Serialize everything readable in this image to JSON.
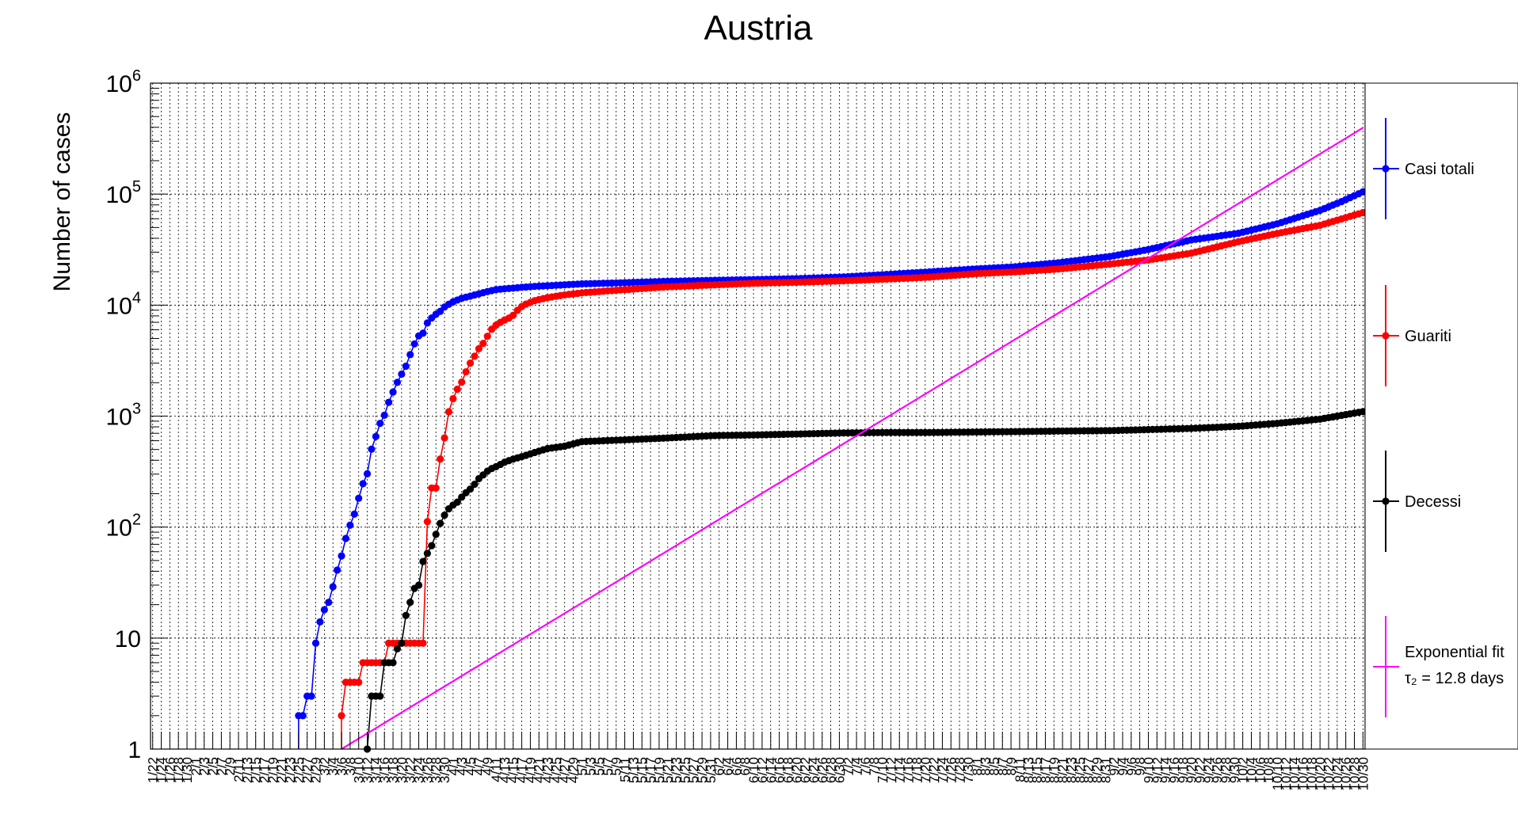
{
  "chart_data": {
    "type": "line",
    "title": "Austria",
    "ylabel": "Number of cases",
    "xlabel": "",
    "yscale": "log",
    "ylim": [
      1,
      1000000
    ],
    "y_tick_labels": [
      {
        "value": 1,
        "label": "1"
      },
      {
        "value": 10,
        "label": "10"
      },
      {
        "value": 100,
        "label": "10",
        "exp": "2"
      },
      {
        "value": 1000,
        "label": "10",
        "exp": "3"
      },
      {
        "value": 10000,
        "label": "10",
        "exp": "4"
      },
      {
        "value": 100000,
        "label": "10",
        "exp": "5"
      },
      {
        "value": 1000000,
        "label": "10",
        "exp": "6"
      }
    ],
    "x_start": "1/22",
    "x_end": "10/30",
    "x_tick_labels": [
      "1/22",
      "1/24",
      "1/26",
      "1/28",
      "1/30",
      "2/1",
      "2/3",
      "2/5",
      "2/7",
      "2/9",
      "2/11",
      "2/13",
      "2/15",
      "2/17",
      "2/19",
      "2/21",
      "2/23",
      "2/25",
      "2/27",
      "2/29",
      "3/2",
      "3/4",
      "3/6",
      "3/8",
      "3/10",
      "3/12",
      "3/14",
      "3/16",
      "3/18",
      "3/20",
      "3/22",
      "3/24",
      "3/26",
      "3/28",
      "3/30",
      "4/1",
      "4/3",
      "4/5",
      "4/7",
      "4/9",
      "4/11",
      "4/13",
      "4/15",
      "4/17",
      "4/19",
      "4/21",
      "4/23",
      "4/25",
      "4/27",
      "4/29",
      "5/1",
      "5/3",
      "5/5",
      "5/7",
      "5/9",
      "5/11",
      "5/13",
      "5/15",
      "5/17",
      "5/19",
      "5/21",
      "5/23",
      "5/25",
      "5/27",
      "5/29",
      "5/31",
      "6/2",
      "6/4",
      "6/6",
      "6/8",
      "6/10",
      "6/12",
      "6/14",
      "6/16",
      "6/18",
      "6/20",
      "6/22",
      "6/24",
      "6/26",
      "6/28",
      "6/30",
      "7/2",
      "7/4",
      "7/6",
      "7/8",
      "7/10",
      "7/12",
      "7/14",
      "7/16",
      "7/18",
      "7/20",
      "7/22",
      "7/24",
      "7/26",
      "7/28",
      "7/30",
      "8/1",
      "8/3",
      "8/5",
      "8/7",
      "8/9",
      "8/11",
      "8/13",
      "8/15",
      "8/17",
      "8/19",
      "8/21",
      "8/23",
      "8/25",
      "8/27",
      "8/29",
      "8/31",
      "9/2",
      "9/4",
      "9/6",
      "9/8",
      "9/10",
      "9/12",
      "9/14",
      "9/16",
      "9/18",
      "9/20",
      "9/22",
      "9/24",
      "9/26",
      "9/28",
      "9/30",
      "10/2",
      "10/4",
      "10/6",
      "10/8",
      "10/10",
      "10/12",
      "10/14",
      "10/16",
      "10/18",
      "10/20",
      "10/22",
      "10/24",
      "10/26",
      "10/28",
      "10/30"
    ],
    "grid": true,
    "legend_position": "right",
    "series": [
      {
        "name": "Casi totali",
        "color": "#0000ff",
        "markers": true,
        "points": [
          [
            "2/25",
            2
          ],
          [
            "2/26",
            2
          ],
          [
            "2/27",
            3
          ],
          [
            "2/28",
            3
          ],
          [
            "2/29",
            9
          ],
          [
            "3/1",
            14
          ],
          [
            "3/2",
            18
          ],
          [
            "3/3",
            21
          ],
          [
            "3/4",
            29
          ],
          [
            "3/5",
            41
          ],
          [
            "3/6",
            55
          ],
          [
            "3/7",
            79
          ],
          [
            "3/8",
            104
          ],
          [
            "3/9",
            131
          ],
          [
            "3/10",
            182
          ],
          [
            "3/11",
            246
          ],
          [
            "3/12",
            302
          ],
          [
            "3/13",
            504
          ],
          [
            "3/14",
            655
          ],
          [
            "3/15",
            860
          ],
          [
            "3/16",
            1018
          ],
          [
            "3/17",
            1332
          ],
          [
            "3/18",
            1646
          ],
          [
            "3/19",
            2013
          ],
          [
            "3/20",
            2388
          ],
          [
            "3/21",
            2814
          ],
          [
            "3/22",
            3582
          ],
          [
            "3/23",
            4474
          ],
          [
            "3/24",
            5283
          ],
          [
            "3/25",
            5588
          ],
          [
            "3/26",
            6909
          ],
          [
            "3/27",
            7657
          ],
          [
            "3/28",
            8271
          ],
          [
            "3/29",
            8788
          ],
          [
            "3/30",
            9618
          ],
          [
            "3/31",
            10180
          ],
          [
            "4/1",
            10711
          ],
          [
            "4/3",
            11525
          ],
          [
            "4/5",
            12051
          ],
          [
            "4/7",
            12640
          ],
          [
            "4/9",
            13244
          ],
          [
            "4/11",
            13806
          ],
          [
            "4/13",
            14041
          ],
          [
            "4/15",
            14226
          ],
          [
            "4/17",
            14476
          ],
          [
            "4/20",
            14749
          ],
          [
            "4/25",
            15089
          ],
          [
            "5/1",
            15531
          ],
          [
            "5/10",
            15882
          ],
          [
            "5/20",
            16353
          ],
          [
            "6/1",
            16731
          ],
          [
            "6/10",
            16979
          ],
          [
            "6/20",
            17323
          ],
          [
            "7/1",
            17941
          ],
          [
            "7/10",
            18783
          ],
          [
            "7/20",
            19827
          ],
          [
            "8/1",
            21212
          ],
          [
            "8/10",
            22155
          ],
          [
            "8/20",
            24084
          ],
          [
            "9/1",
            27404
          ],
          [
            "9/10",
            31705
          ],
          [
            "9/20",
            38658
          ],
          [
            "10/1",
            44401
          ],
          [
            "10/10",
            54006
          ],
          [
            "10/20",
            71390
          ],
          [
            "10/25",
            85660
          ],
          [
            "10/30",
            104925
          ]
        ]
      },
      {
        "name": "Guariti",
        "color": "#ff0000",
        "markers": true,
        "points": [
          [
            "3/6",
            2
          ],
          [
            "3/7",
            4
          ],
          [
            "3/8",
            4
          ],
          [
            "3/9",
            4
          ],
          [
            "3/10",
            4
          ],
          [
            "3/11",
            6
          ],
          [
            "3/12",
            6
          ],
          [
            "3/13",
            6
          ],
          [
            "3/14",
            6
          ],
          [
            "3/15",
            6
          ],
          [
            "3/16",
            6
          ],
          [
            "3/17",
            9
          ],
          [
            "3/18",
            9
          ],
          [
            "3/19",
            9
          ],
          [
            "3/20",
            9
          ],
          [
            "3/21",
            9
          ],
          [
            "3/22",
            9
          ],
          [
            "3/23",
            9
          ],
          [
            "3/24",
            9
          ],
          [
            "3/25",
            9
          ],
          [
            "3/26",
            112
          ],
          [
            "3/27",
            225
          ],
          [
            "3/28",
            225
          ],
          [
            "3/29",
            410
          ],
          [
            "3/30",
            636
          ],
          [
            "3/31",
            1095
          ],
          [
            "4/1",
            1436
          ],
          [
            "4/2",
            1749
          ],
          [
            "4/3",
            2022
          ],
          [
            "4/4",
            2507
          ],
          [
            "4/5",
            2998
          ],
          [
            "4/6",
            3463
          ],
          [
            "4/7",
            4046
          ],
          [
            "4/8",
            4512
          ],
          [
            "4/9",
            5240
          ],
          [
            "4/10",
            6064
          ],
          [
            "4/11",
            6604
          ],
          [
            "4/12",
            6987
          ],
          [
            "4/13",
            7343
          ],
          [
            "4/14",
            7633
          ],
          [
            "4/15",
            8098
          ],
          [
            "4/16",
            8986
          ],
          [
            "4/17",
            9704
          ],
          [
            "4/18",
            10214
          ],
          [
            "4/20",
            10971
          ],
          [
            "4/23",
            11694
          ],
          [
            "4/27",
            12362
          ],
          [
            "5/1",
            12907
          ],
          [
            "5/10",
            13698
          ],
          [
            "5/20",
            14548
          ],
          [
            "6/1",
            15228
          ],
          [
            "6/10",
            15731
          ],
          [
            "6/20",
            16058
          ],
          [
            "7/1",
            16561
          ],
          [
            "7/10",
            17087
          ],
          [
            "7/20",
            17771
          ],
          [
            "8/1",
            19213
          ],
          [
            "8/10",
            19936
          ],
          [
            "8/20",
            21146
          ],
          [
            "9/1",
            23427
          ],
          [
            "9/10",
            25537
          ],
          [
            "9/20",
            29386
          ],
          [
            "10/1",
            37285
          ],
          [
            "10/10",
            44236
          ],
          [
            "10/20",
            52373
          ],
          [
            "10/30",
            68227
          ]
        ]
      },
      {
        "name": "Decessi",
        "color": "#000000",
        "markers": true,
        "points": [
          [
            "3/12",
            1
          ],
          [
            "3/13",
            3
          ],
          [
            "3/14",
            3
          ],
          [
            "3/15",
            3
          ],
          [
            "3/16",
            6
          ],
          [
            "3/17",
            6
          ],
          [
            "3/18",
            6
          ],
          [
            "3/19",
            8
          ],
          [
            "3/20",
            9
          ],
          [
            "3/21",
            16
          ],
          [
            "3/22",
            21
          ],
          [
            "3/23",
            28
          ],
          [
            "3/24",
            30
          ],
          [
            "3/25",
            49
          ],
          [
            "3/26",
            58
          ],
          [
            "3/27",
            68
          ],
          [
            "3/28",
            86
          ],
          [
            "3/29",
            108
          ],
          [
            "3/30",
            128
          ],
          [
            "3/31",
            146
          ],
          [
            "4/1",
            158
          ],
          [
            "4/2",
            168
          ],
          [
            "4/3",
            186
          ],
          [
            "4/4",
            204
          ],
          [
            "4/5",
            220
          ],
          [
            "4/6",
            243
          ],
          [
            "4/7",
            273
          ],
          [
            "4/8",
            295
          ],
          [
            "4/9",
            319
          ],
          [
            "4/10",
            337
          ],
          [
            "4/11",
            350
          ],
          [
            "4/13",
            384
          ],
          [
            "4/15",
            410
          ],
          [
            "4/17",
            431
          ],
          [
            "4/20",
            470
          ],
          [
            "4/23",
            510
          ],
          [
            "4/27",
            536
          ],
          [
            "5/1",
            589
          ],
          [
            "5/10",
            609
          ],
          [
            "5/20",
            633
          ],
          [
            "6/1",
            668
          ],
          [
            "6/10",
            676
          ],
          [
            "6/20",
            689
          ],
          [
            "7/1",
            705
          ],
          [
            "7/10",
            711
          ],
          [
            "7/20",
            711
          ],
          [
            "8/1",
            719
          ],
          [
            "8/10",
            725
          ],
          [
            "8/20",
            733
          ],
          [
            "9/1",
            740
          ],
          [
            "9/10",
            756
          ],
          [
            "9/20",
            775
          ],
          [
            "10/1",
            809
          ],
          [
            "10/10",
            860
          ],
          [
            "10/20",
            939
          ],
          [
            "10/30",
            1098
          ]
        ]
      },
      {
        "name": "Exponential fit",
        "name_line2": "τ₂ = 12.8 days",
        "color": "#ff00ff",
        "markers": false,
        "fit": {
          "tau2_days": 12.8,
          "start": "3/6",
          "start_value": 1,
          "end": "10/30",
          "end_value": 104925
        }
      }
    ]
  }
}
